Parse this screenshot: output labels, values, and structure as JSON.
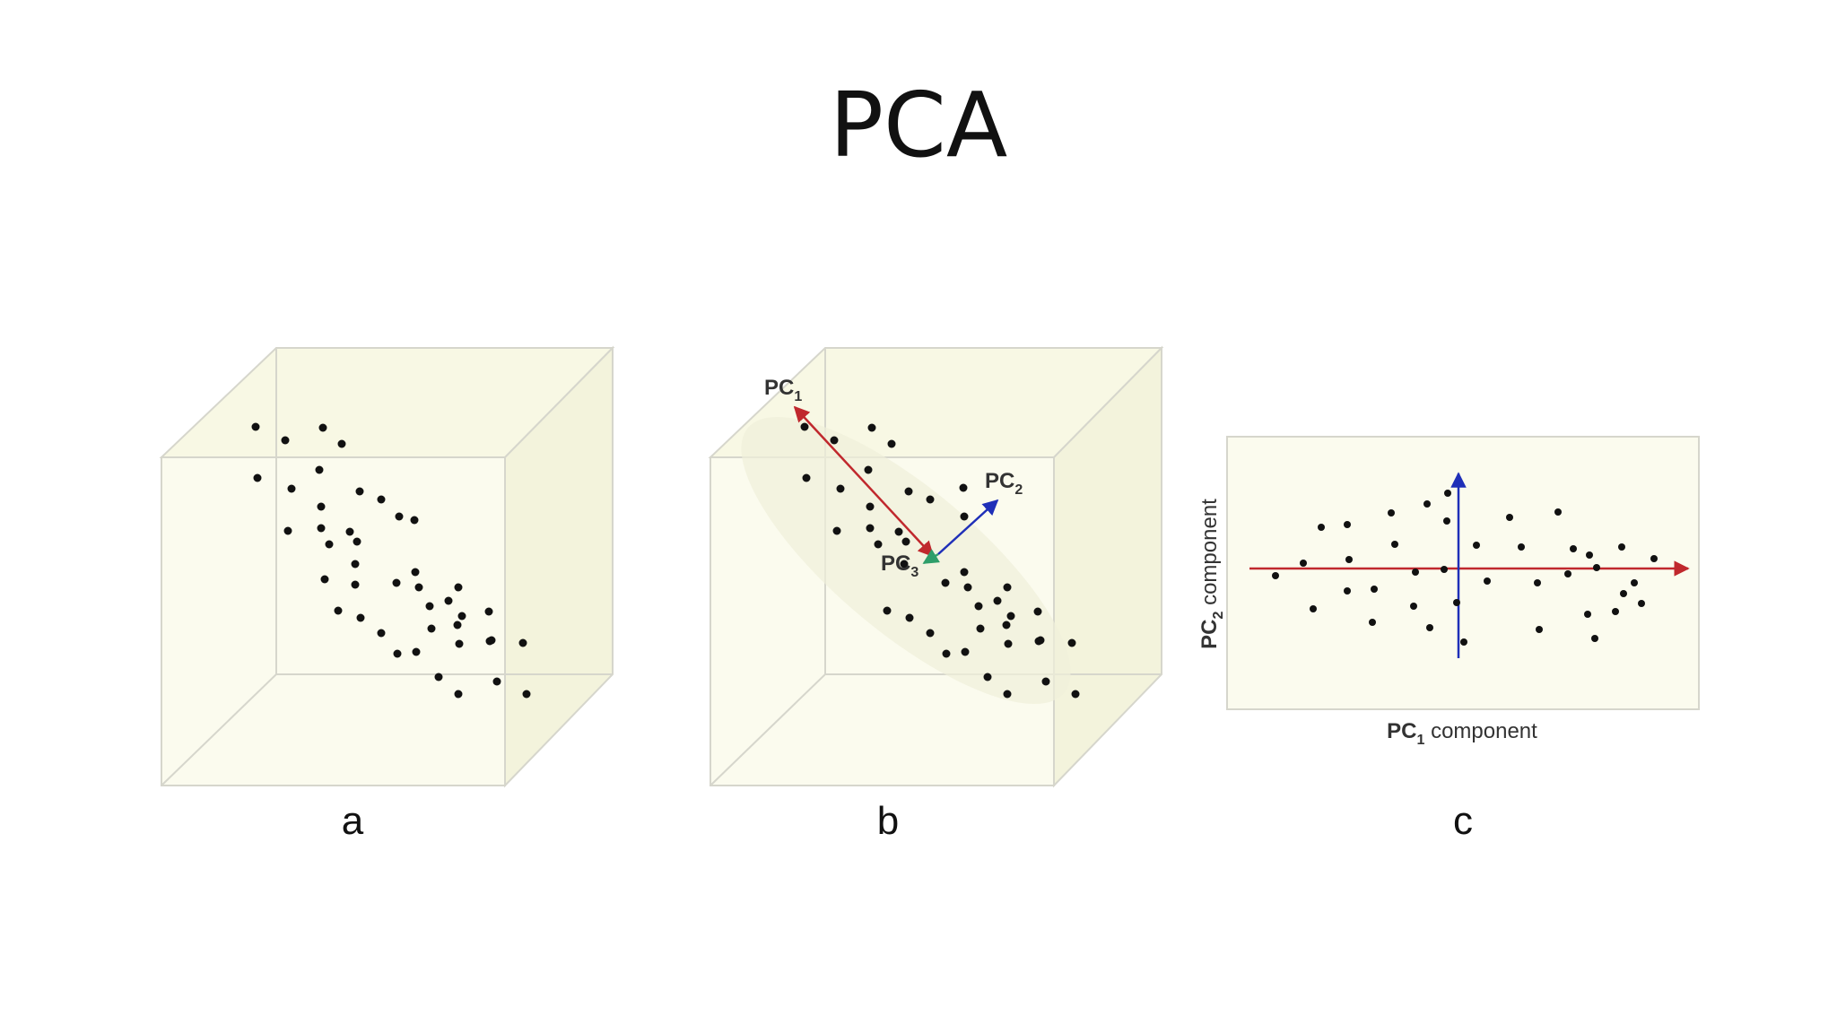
{
  "title": "PCA",
  "panels": [
    {
      "label": "a"
    },
    {
      "label": "b"
    },
    {
      "label": "c"
    }
  ],
  "vectors": {
    "pc1": {
      "prefix": "PC",
      "sub": "1",
      "color": "#c0282d"
    },
    "pc2": {
      "prefix": "PC",
      "sub": "2",
      "color": "#1f2fb8"
    },
    "pc3": {
      "prefix": "PC",
      "sub": "3",
      "color": "#2e9e6a"
    }
  },
  "projection_axes": {
    "x_label": {
      "prefix": "PC",
      "sub": "1",
      "rest": " component"
    },
    "y_label": {
      "prefix": "PC",
      "sub": "2",
      "rest": " component"
    },
    "x_axis_color": "#c0282d",
    "y_axis_color": "#1f2fb8"
  },
  "colors": {
    "box_face": "#fbfbec",
    "box_face_dark": "#f5f5df",
    "box_edge": "#d6d6cc",
    "point": "#111111"
  }
}
